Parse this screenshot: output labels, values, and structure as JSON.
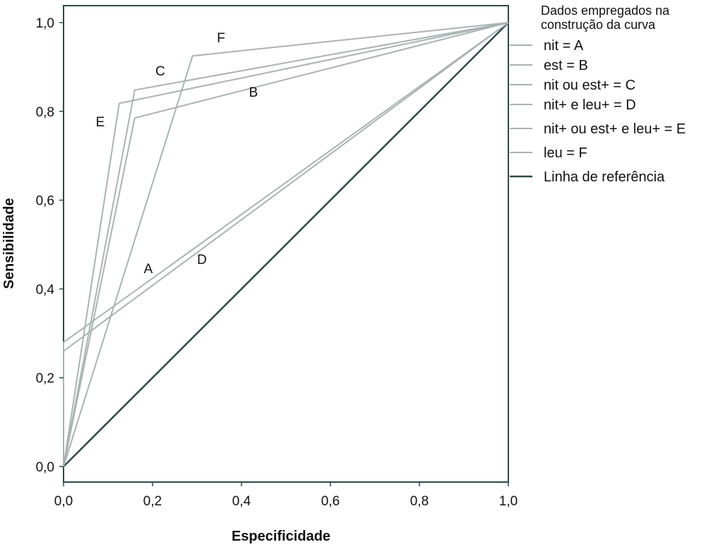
{
  "chart_data": {
    "type": "line",
    "xlabel": "Especificidade",
    "ylabel": "Sensibilidade",
    "xlim": [
      0,
      1
    ],
    "ylim": [
      0,
      1
    ],
    "xticks": [
      "0,0",
      "0,2",
      "0,4",
      "0,6",
      "0,8",
      "1,0"
    ],
    "yticks": [
      "0,0",
      "0,2",
      "0,4",
      "0,6",
      "0,8",
      "1,0"
    ],
    "grid": false,
    "legend_title": "Dados empregados na construção da curva",
    "legend_position": "right",
    "series": [
      {
        "name": "nit = A",
        "label": "A",
        "color": "#a9b4b2",
        "points": [
          [
            0,
            0
          ],
          [
            0,
            0.26
          ],
          [
            1,
            1
          ]
        ]
      },
      {
        "name": "est = B",
        "label": "B",
        "color": "#a9b4b2",
        "points": [
          [
            0,
            0
          ],
          [
            0.16,
            0.785
          ],
          [
            1,
            1
          ]
        ]
      },
      {
        "name": "nit ou est+ = C",
        "label": "C",
        "color": "#a9b4b2",
        "points": [
          [
            0,
            0
          ],
          [
            0.16,
            0.848
          ],
          [
            1,
            1
          ]
        ]
      },
      {
        "name": "nit+ e leu+ = D",
        "label": "D",
        "color": "#a9b4b2",
        "points": [
          [
            0,
            0
          ],
          [
            0,
            0.28
          ],
          [
            1,
            1
          ]
        ]
      },
      {
        "name": "nit+ ou est+ e leu+ = E",
        "label": "E",
        "color": "#a9b4b2",
        "points": [
          [
            0,
            0
          ],
          [
            0.125,
            0.818
          ],
          [
            1,
            1
          ]
        ]
      },
      {
        "name": "leu = F",
        "label": "F",
        "color": "#a9b4b2",
        "points": [
          [
            0,
            0
          ],
          [
            0.29,
            0.925
          ],
          [
            1,
            1
          ]
        ]
      },
      {
        "name": "Linha de referência",
        "label": "",
        "color": "#2c4a46",
        "points": [
          [
            0,
            0
          ],
          [
            1,
            1
          ]
        ]
      }
    ]
  }
}
